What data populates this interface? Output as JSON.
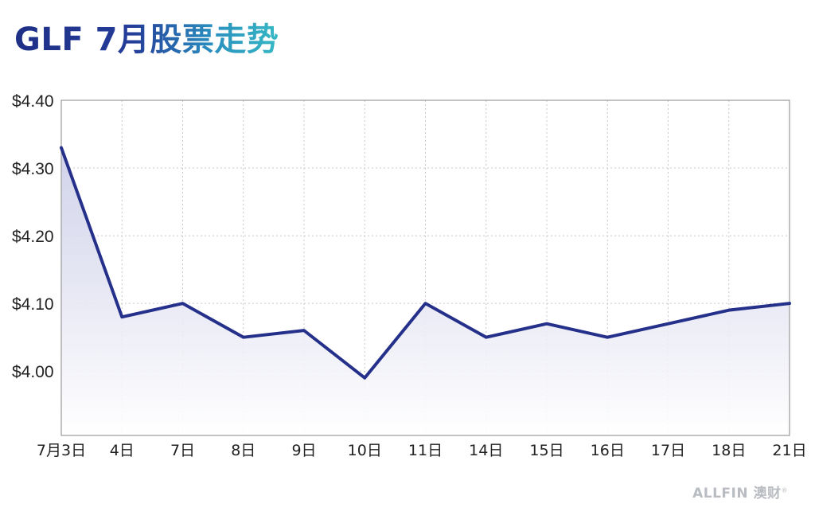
{
  "title": "GLF 7月股票走势",
  "brand": {
    "name": "ALLFIN 澳财",
    "mark": "®"
  },
  "colors": {
    "line": "#25308a",
    "fill_top": "#c9cbe6",
    "fill_bottom": "#ffffff",
    "grid": "#c8c8c8",
    "axis": "#9a9a9a",
    "text": "#222222",
    "brand": "#b9bcc2"
  },
  "chart_data": {
    "type": "line",
    "title": "GLF 7月股票走势",
    "xlabel": "",
    "ylabel": "",
    "categories": [
      "7月3日",
      "4日",
      "7日",
      "8日",
      "9日",
      "10日",
      "11日",
      "14日",
      "15日",
      "16日",
      "17日",
      "18日",
      "21日"
    ],
    "series": [
      {
        "values": [
          4.33,
          4.08,
          4.1,
          4.05,
          4.06,
          3.99,
          4.1,
          4.05,
          4.07,
          4.05,
          4.07,
          4.09,
          4.1
        ]
      }
    ],
    "ylim": [
      3.905,
      4.4
    ],
    "yticks": [
      4.0,
      4.1,
      4.2,
      4.3,
      4.4
    ],
    "ytick_labels": [
      "$4.00",
      "$4.10",
      "$4.20",
      "$4.30",
      "$4.40"
    ],
    "grid": true,
    "area_fill": true,
    "legend": "none"
  }
}
